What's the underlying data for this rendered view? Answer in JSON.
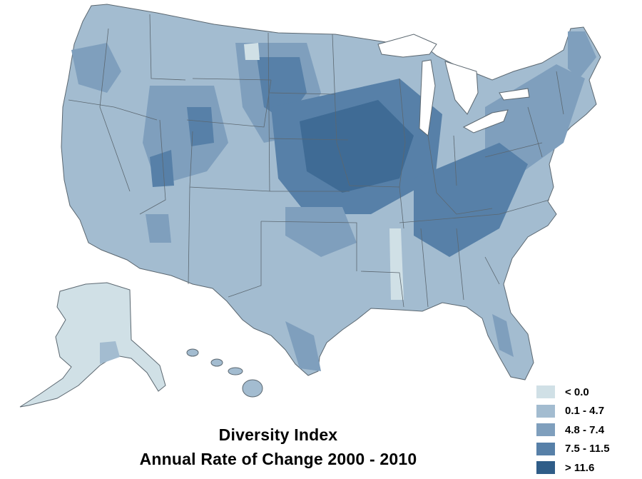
{
  "title": {
    "line1": "Diversity Index",
    "line2": "Annual Rate of Change 2000 - 2010"
  },
  "legend": {
    "items": [
      {
        "label": "< 0.0",
        "color": "#d0e0e6"
      },
      {
        "label": "0.1 - 4.7",
        "color": "#a3bcd0"
      },
      {
        "label": "4.8 - 7.4",
        "color": "#7f9fbd"
      },
      {
        "label": "7.5 - 11.5",
        "color": "#5780a8"
      },
      {
        "label": "> 11.6",
        "color": "#2f5d88"
      }
    ]
  },
  "map": {
    "region_shown": "United States counties, including Alaska and Hawaii insets",
    "border_color": "#5b6770",
    "lake_color": "#ffffff"
  }
}
